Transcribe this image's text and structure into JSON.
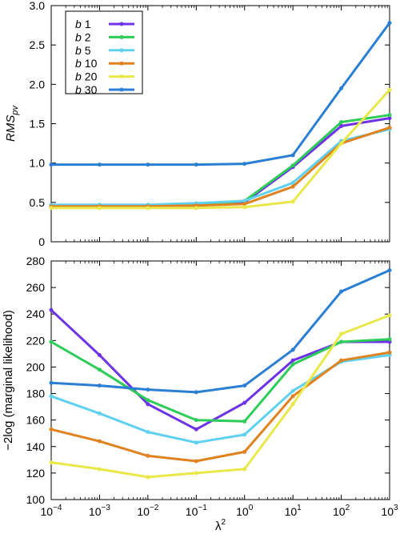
{
  "chart_data": [
    {
      "type": "line",
      "ylabel": "RMS",
      "ylabel_sub": "pv",
      "x_scale": "log",
      "x": [
        0.0001,
        0.001,
        0.01,
        0.1,
        1,
        10,
        100,
        1000
      ],
      "ylim": [
        0,
        3
      ],
      "yticks": [
        0,
        0.5,
        1.0,
        1.5,
        2.0,
        2.5,
        3.0
      ],
      "ytick_labels": [
        "0",
        "0.5",
        "1.0",
        "1.5",
        "2.0",
        "2.5",
        "3.0"
      ],
      "grid": false,
      "legend_position": "top-left",
      "series": [
        {
          "name_prefix": "b",
          "name": "1",
          "color": "#6d33e5",
          "values": [
            0.45,
            0.46,
            0.46,
            0.46,
            0.5,
            0.95,
            1.47,
            1.57
          ]
        },
        {
          "name_prefix": "b",
          "name": "2",
          "color": "#2ecc58",
          "values": [
            0.46,
            0.46,
            0.46,
            0.47,
            0.52,
            0.97,
            1.52,
            1.61
          ]
        },
        {
          "name_prefix": "b",
          "name": "5",
          "color": "#5fd1ee",
          "values": [
            0.47,
            0.47,
            0.47,
            0.49,
            0.52,
            0.75,
            1.28,
            1.43
          ]
        },
        {
          "name_prefix": "b",
          "name": "10",
          "color": "#e0821f",
          "values": [
            0.45,
            0.45,
            0.45,
            0.46,
            0.48,
            0.7,
            1.25,
            1.45
          ]
        },
        {
          "name_prefix": "b",
          "name": "20",
          "color": "#e8e84a",
          "values": [
            0.43,
            0.43,
            0.43,
            0.43,
            0.44,
            0.51,
            1.25,
            1.93
          ]
        },
        {
          "name_prefix": "b",
          "name": "30",
          "color": "#2a7fd4",
          "values": [
            0.98,
            0.98,
            0.98,
            0.98,
            0.99,
            1.1,
            1.95,
            2.78
          ]
        }
      ]
    },
    {
      "type": "line",
      "ylabel": "−2log (marginal likelihood)",
      "xlabel": "λ",
      "xlabel_sup": "2",
      "x_scale": "log",
      "x": [
        0.0001,
        0.001,
        0.01,
        0.1,
        1,
        10,
        100,
        1000
      ],
      "xtick_base": "10",
      "xtick_exponents": [
        "−4",
        "−3",
        "−2",
        "−1",
        "0",
        "1",
        "2",
        "3"
      ],
      "ylim": [
        100,
        280
      ],
      "yticks": [
        100,
        120,
        140,
        160,
        180,
        200,
        220,
        240,
        260,
        280
      ],
      "ytick_labels": [
        "100",
        "120",
        "140",
        "160",
        "180",
        "200",
        "220",
        "240",
        "260",
        "280"
      ],
      "grid": false,
      "series": [
        {
          "name": "1",
          "color": "#6d33e5",
          "values": [
            243,
            209,
            172,
            153,
            173,
            205,
            219,
            219
          ]
        },
        {
          "name": "2",
          "color": "#2ecc58",
          "values": [
            219,
            198,
            175,
            160,
            159,
            202,
            219,
            221
          ]
        },
        {
          "name": "5",
          "color": "#5fd1ee",
          "values": [
            178,
            165,
            151,
            143,
            149,
            182,
            204,
            209
          ]
        },
        {
          "name": "10",
          "color": "#e0821f",
          "values": [
            153,
            144,
            133,
            129,
            136,
            178,
            205,
            211
          ]
        },
        {
          "name": "20",
          "color": "#e8e84a",
          "values": [
            128,
            123,
            117,
            120,
            123,
            172,
            225,
            239
          ]
        },
        {
          "name": "30",
          "color": "#2a7fd4",
          "values": [
            188,
            186,
            183,
            181,
            186,
            213,
            257,
            273
          ]
        }
      ]
    }
  ]
}
